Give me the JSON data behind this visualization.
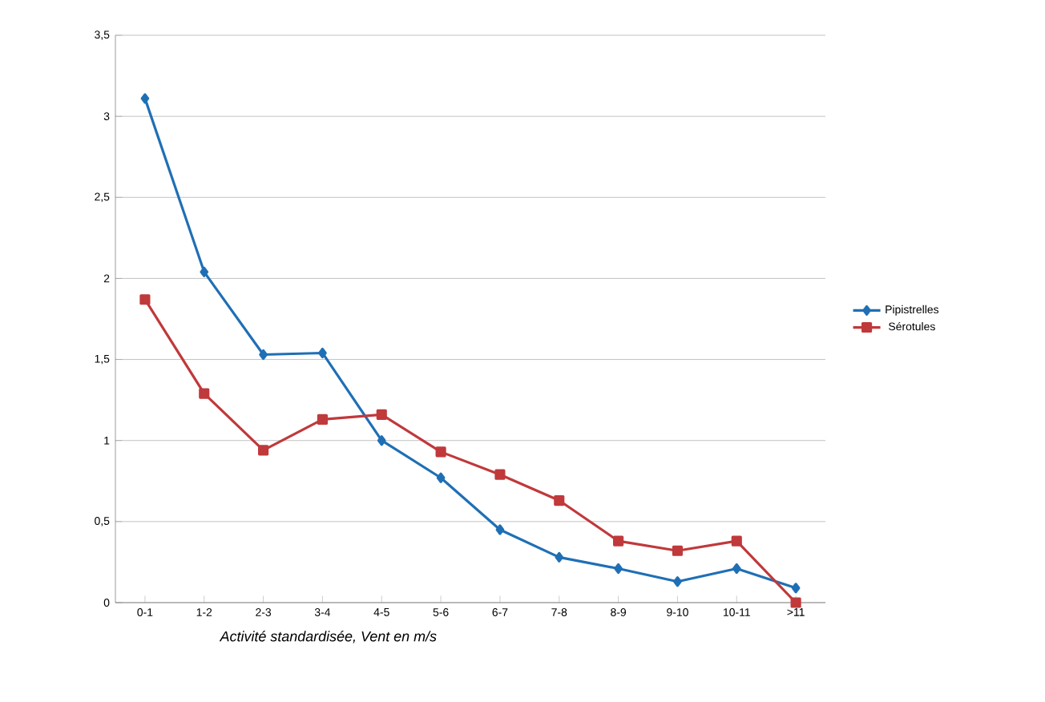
{
  "chart_data": {
    "type": "line",
    "xlabel": "Activité standardisée, Vent en m/s",
    "categories": [
      "0-1",
      "1-2",
      "2-3",
      "3-4",
      "4-5",
      "5-6",
      "6-7",
      "7-8",
      "8-9",
      "9-10",
      "10-11",
      ">11"
    ],
    "series": [
      {
        "name": "Pipistrelles",
        "color": "#1f6fb5",
        "marker": "diamond",
        "values": [
          3.11,
          2.04,
          1.53,
          1.54,
          1.0,
          0.77,
          0.45,
          0.28,
          0.21,
          0.13,
          0.21,
          0.09
        ]
      },
      {
        "name": "Sérotules",
        "color": "#c0393b",
        "marker": "square",
        "values": [
          1.87,
          1.29,
          0.94,
          1.13,
          1.16,
          0.93,
          0.79,
          0.63,
          0.38,
          0.32,
          0.38,
          0.0
        ]
      }
    ],
    "ylim": [
      0,
      3.5
    ],
    "yticks": [
      0,
      {
        "value": 0.5,
        "label": "0,5"
      },
      1,
      {
        "value": 1.5,
        "label": "1,5"
      },
      2,
      {
        "value": 2.5,
        "label": "2,5"
      },
      3,
      {
        "value": 3.5,
        "label": "3,5"
      }
    ],
    "grid": "y",
    "legend": "right",
    "line_style": "solid"
  }
}
